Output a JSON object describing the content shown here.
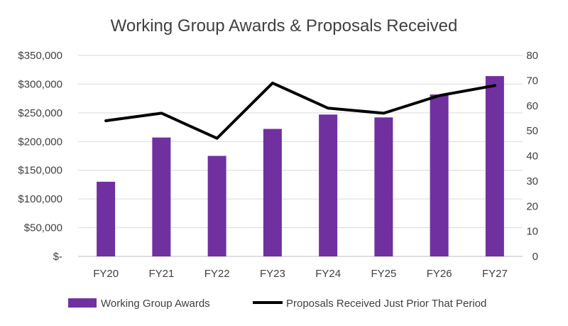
{
  "chart_data": {
    "type": "bar",
    "title": "Working Group Awards & Proposals Received",
    "categories": [
      "FY20",
      "FY21",
      "FY22",
      "FY23",
      "FY24",
      "FY25",
      "FY26",
      "FY27"
    ],
    "y_left": {
      "min": 0,
      "max": 350000,
      "step": 50000,
      "tick_labels": [
        "$-",
        "$50,000",
        "$100,000",
        "$150,000",
        "$200,000",
        "$250,000",
        "$300,000",
        "$350,000"
      ]
    },
    "y_right": {
      "min": 0,
      "max": 80,
      "step": 10,
      "tick_labels": [
        "0",
        "10",
        "20",
        "30",
        "40",
        "50",
        "60",
        "70",
        "80"
      ]
    },
    "series": [
      {
        "name": "Working Group Awards",
        "type": "bar",
        "axis": "left",
        "color": "#7030A0",
        "values": [
          130000,
          207000,
          175000,
          222000,
          247000,
          242000,
          282000,
          314000
        ]
      },
      {
        "name": "Proposals Received Just Prior That Period",
        "type": "line",
        "axis": "right",
        "color": "#000000",
        "values": [
          54,
          57,
          47,
          69,
          59,
          57,
          64,
          68
        ]
      }
    ],
    "grid": true,
    "legend_position": "bottom"
  }
}
